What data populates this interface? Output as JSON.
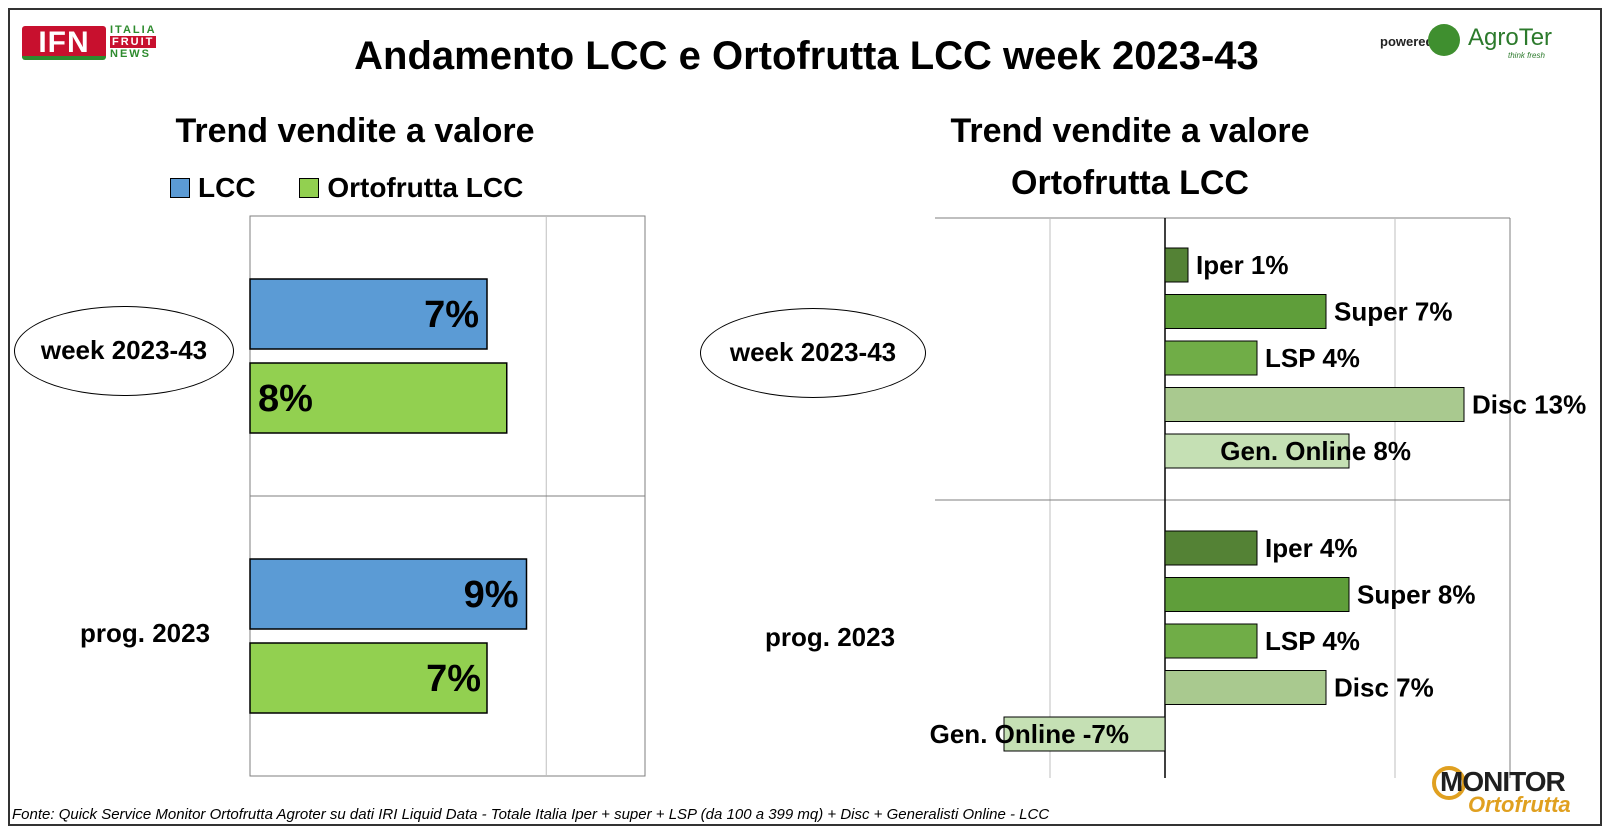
{
  "header": {
    "title": "Andamento LCC e Ortofrutta LCC week 2023-43",
    "logo_ifn": "IFN",
    "logo_ifn_words": [
      "ITALIA",
      "FRUIT",
      "NEWS"
    ],
    "powered_by": "powered by",
    "agroter_name": "AgroTer",
    "agroter_tagline": "think fresh"
  },
  "left_panel": {
    "title": "Trend vendite a valore",
    "legend": [
      {
        "label": "LCC",
        "color": "#5b9bd5"
      },
      {
        "label": "Ortofrutta LCC",
        "color": "#92d050"
      }
    ],
    "categories": [
      "week 2023-43",
      "prog. 2023"
    ]
  },
  "right_panel": {
    "title_line1": "Trend vendite a valore",
    "title_line2": "Ortofrutta LCC",
    "categories": [
      "week 2023-43",
      "prog. 2023"
    ]
  },
  "footer": {
    "source": "Fonte: Quick Service Monitor Ortofrutta Agroter su dati IRI Liquid Data - Totale Italia Iper + super + LSP (da 100 a 399 mq) + Disc + Generalisti Online - LCC",
    "monitor_word": "MONITOR",
    "monitor_sub": "Ortofrutta"
  },
  "chart_data": [
    {
      "type": "bar",
      "orientation": "horizontal",
      "title": "Trend vendite a valore",
      "categories": [
        "week 2023-43",
        "prog. 2023"
      ],
      "series": [
        {
          "name": "LCC",
          "color": "#5b9bd5",
          "values": [
            7,
            9
          ],
          "labels": [
            "7%",
            "9%"
          ]
        },
        {
          "name": "Ortofrutta LCC",
          "color": "#92d050",
          "values": [
            8,
            7
          ],
          "labels": [
            "8%",
            "7%"
          ]
        }
      ],
      "xlim": [
        -5,
        15
      ],
      "grid": true,
      "legend": "top"
    },
    {
      "type": "bar",
      "orientation": "horizontal",
      "title": "Trend vendite a valore Ortofrutta LCC",
      "categories": [
        "week 2023-43",
        "prog. 2023"
      ],
      "groups": [
        {
          "category": "week 2023-43",
          "bars": [
            {
              "label": "Iper 1%",
              "value": 1,
              "color": "#548235"
            },
            {
              "label": "Super 7%",
              "value": 7,
              "color": "#5f9e3a"
            },
            {
              "label": "LSP 4%",
              "value": 4,
              "color": "#70ad47"
            },
            {
              "label": "Disc 13%",
              "value": 13,
              "color": "#a9c98f"
            },
            {
              "label": "Gen. Online 8%",
              "value": 8,
              "color": "#c5e0b4"
            }
          ]
        },
        {
          "category": "prog. 2023",
          "bars": [
            {
              "label": "Iper 4%",
              "value": 4,
              "color": "#548235"
            },
            {
              "label": "Super 8%",
              "value": 8,
              "color": "#5f9e3a"
            },
            {
              "label": "LSP 4%",
              "value": 4,
              "color": "#70ad47"
            },
            {
              "label": "Disc 7%",
              "value": 7,
              "color": "#a9c98f"
            },
            {
              "label": "Gen. Online -7%",
              "value": -7,
              "color": "#c5e0b4"
            }
          ]
        }
      ],
      "xlim": [
        -10,
        15
      ],
      "grid": true
    }
  ]
}
